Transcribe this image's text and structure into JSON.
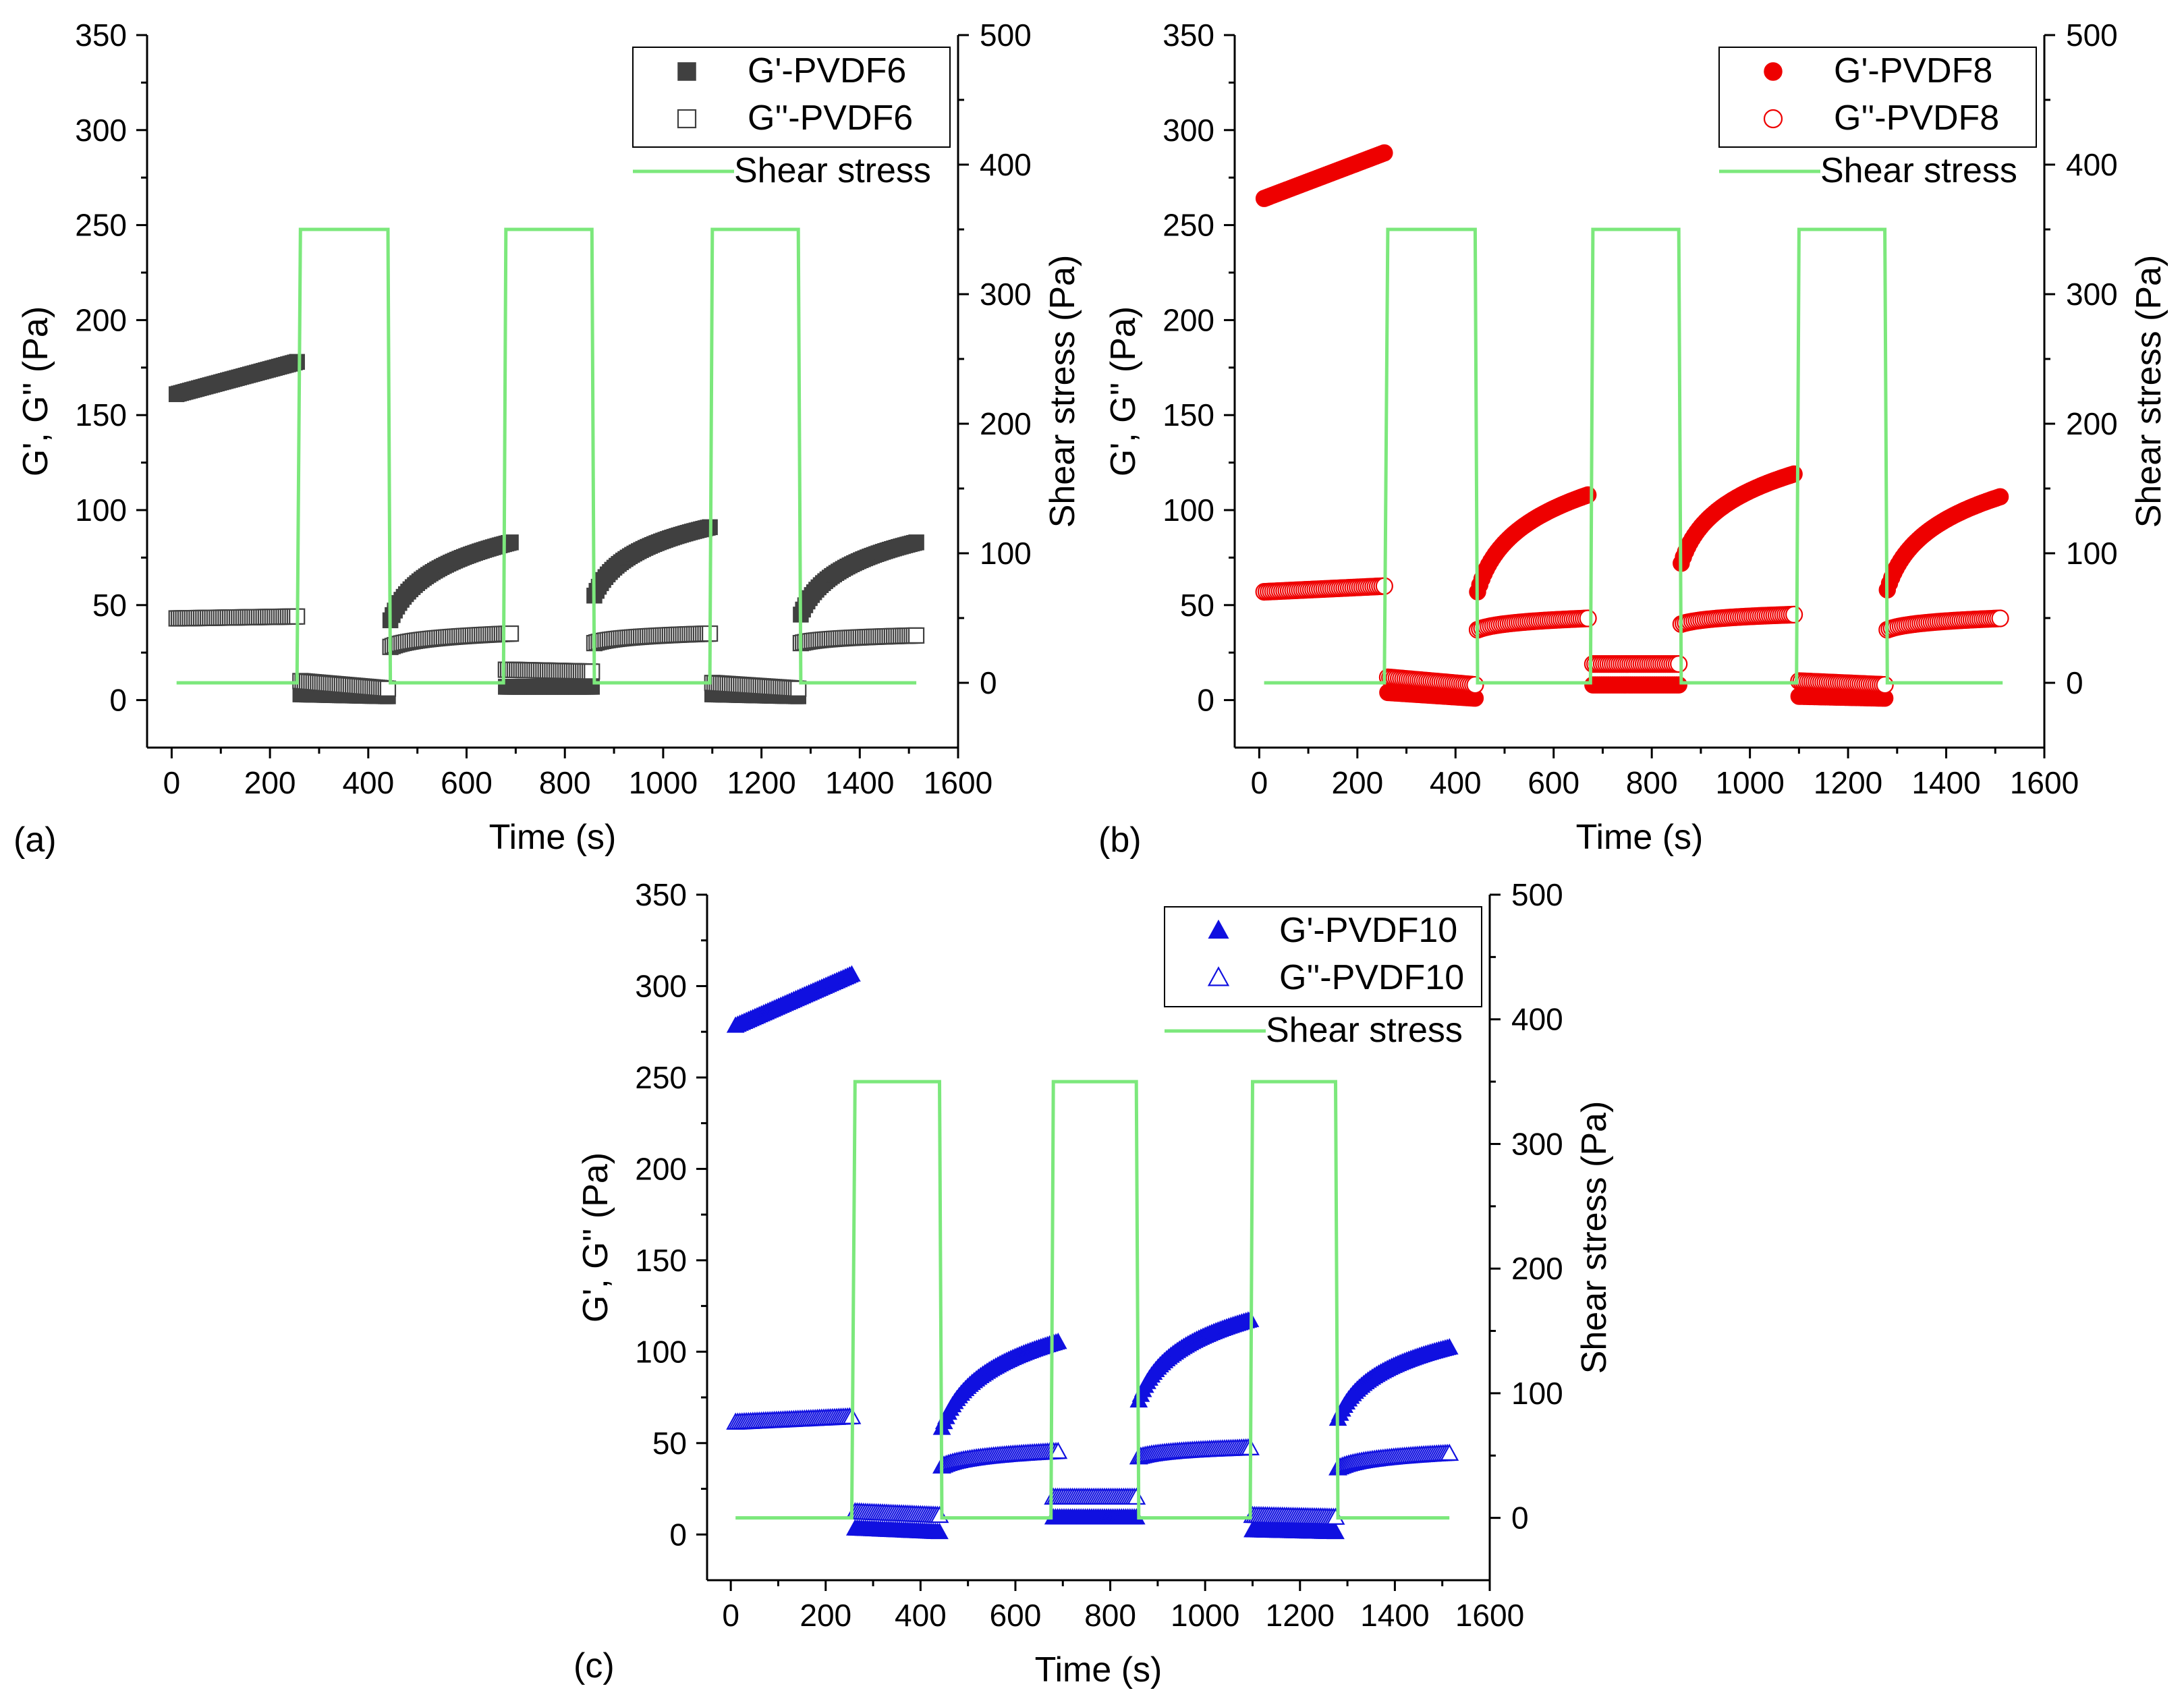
{
  "chart_data": [
    {
      "type": "scatter",
      "panel_label": "(a)",
      "xlabel": "Time (s)",
      "ylabel": "G', G'' (Pa)",
      "y2label": "Shear stress (Pa)",
      "xlim": [
        -50,
        1600
      ],
      "ylim": [
        -25,
        350
      ],
      "y2lim": [
        -50,
        500
      ],
      "xticks": [
        "0",
        "200",
        "400",
        "600",
        "800",
        "1000",
        "1200",
        "1400",
        "1600"
      ],
      "yticks": [
        "0",
        "50",
        "100",
        "150",
        "200",
        "250",
        "300",
        "350"
      ],
      "y2ticks": [
        "0",
        "100",
        "200",
        "300",
        "400",
        "500"
      ],
      "marker": "square",
      "color": "#404040",
      "stress_color": "#7CE87C",
      "legend_position": "top-right",
      "legend": [
        "G'-PVDF6",
        "G''-PVDF6",
        "Shear stress"
      ],
      "series": [
        {
          "name": "G'-PVDF6",
          "filled": true,
          "segments": [
            {
              "t0": 10,
              "t1": 255,
              "v0": 161,
              "v1": 178,
              "shape": "linear"
            },
            {
              "t0": 262,
              "t1": 440,
              "v0": 3,
              "v1": 2,
              "shape": "linear"
            },
            {
              "t0": 445,
              "t1": 690,
              "v0": 42,
              "v1": 83,
              "shape": "log"
            },
            {
              "t0": 680,
              "t1": 855,
              "v0": 7,
              "v1": 7,
              "shape": "linear"
            },
            {
              "t0": 860,
              "t1": 1095,
              "v0": 55,
              "v1": 91,
              "shape": "log"
            },
            {
              "t0": 1100,
              "t1": 1275,
              "v0": 3,
              "v1": 2,
              "shape": "linear"
            },
            {
              "t0": 1280,
              "t1": 1515,
              "v0": 45,
              "v1": 83,
              "shape": "log"
            }
          ]
        },
        {
          "name": "G''-PVDF6",
          "filled": false,
          "segments": [
            {
              "t0": 10,
              "t1": 255,
              "v0": 43,
              "v1": 44,
              "shape": "linear"
            },
            {
              "t0": 262,
              "t1": 440,
              "v0": 10,
              "v1": 6,
              "shape": "linear"
            },
            {
              "t0": 445,
              "t1": 690,
              "v0": 28,
              "v1": 35,
              "shape": "log"
            },
            {
              "t0": 680,
              "t1": 855,
              "v0": 16,
              "v1": 15,
              "shape": "linear"
            },
            {
              "t0": 860,
              "t1": 1095,
              "v0": 30,
              "v1": 35,
              "shape": "log"
            },
            {
              "t0": 1100,
              "t1": 1275,
              "v0": 9,
              "v1": 6,
              "shape": "linear"
            },
            {
              "t0": 1280,
              "t1": 1515,
              "v0": 30,
              "v1": 34,
              "shape": "log"
            }
          ]
        },
        {
          "name": "Shear stress",
          "type": "line",
          "points": [
            [
              10,
              0
            ],
            [
              255,
              0
            ],
            [
              262,
              350
            ],
            [
              440,
              350
            ],
            [
              445,
              0
            ],
            [
              675,
              0
            ],
            [
              680,
              350
            ],
            [
              855,
              350
            ],
            [
              860,
              0
            ],
            [
              1095,
              0
            ],
            [
              1100,
              350
            ],
            [
              1275,
              350
            ],
            [
              1280,
              0
            ],
            [
              1515,
              0
            ]
          ]
        }
      ]
    },
    {
      "type": "scatter",
      "panel_label": "(b)",
      "xlabel": "Time (s)",
      "ylabel": "G', G'' (Pa)",
      "y2label": "Shear stress (Pa)",
      "xlim": [
        -50,
        1600
      ],
      "ylim": [
        -25,
        350
      ],
      "y2lim": [
        -50,
        500
      ],
      "xticks": [
        "0",
        "200",
        "400",
        "600",
        "800",
        "1000",
        "1200",
        "1400",
        "1600"
      ],
      "yticks": [
        "0",
        "50",
        "100",
        "150",
        "200",
        "250",
        "300",
        "350"
      ],
      "y2ticks": [
        "0",
        "100",
        "200",
        "300",
        "400",
        "500"
      ],
      "marker": "circle",
      "color": "#EE0000",
      "stress_color": "#7CE87C",
      "legend_position": "top-right",
      "legend": [
        "G'-PVDF8",
        "G''-PVDF8",
        "Shear stress"
      ],
      "series": [
        {
          "name": "G'-PVDF8",
          "filled": true,
          "segments": [
            {
              "t0": 10,
              "t1": 255,
              "v0": 264,
              "v1": 288,
              "shape": "linear"
            },
            {
              "t0": 262,
              "t1": 440,
              "v0": 4,
              "v1": 1,
              "shape": "linear"
            },
            {
              "t0": 445,
              "t1": 670,
              "v0": 57,
              "v1": 108,
              "shape": "log"
            },
            {
              "t0": 680,
              "t1": 855,
              "v0": 8,
              "v1": 8,
              "shape": "linear"
            },
            {
              "t0": 860,
              "t1": 1090,
              "v0": 72,
              "v1": 119,
              "shape": "log"
            },
            {
              "t0": 1100,
              "t1": 1275,
              "v0": 2,
              "v1": 1,
              "shape": "linear"
            },
            {
              "t0": 1280,
              "t1": 1510,
              "v0": 58,
              "v1": 107,
              "shape": "log"
            }
          ]
        },
        {
          "name": "G''-PVDF8",
          "filled": false,
          "segments": [
            {
              "t0": 10,
              "t1": 255,
              "v0": 57,
              "v1": 60,
              "shape": "linear"
            },
            {
              "t0": 262,
              "t1": 440,
              "v0": 12,
              "v1": 8,
              "shape": "linear"
            },
            {
              "t0": 445,
              "t1": 670,
              "v0": 37,
              "v1": 43,
              "shape": "log"
            },
            {
              "t0": 680,
              "t1": 855,
              "v0": 19,
              "v1": 19,
              "shape": "linear"
            },
            {
              "t0": 860,
              "t1": 1090,
              "v0": 40,
              "v1": 45,
              "shape": "log"
            },
            {
              "t0": 1100,
              "t1": 1275,
              "v0": 10,
              "v1": 8,
              "shape": "linear"
            },
            {
              "t0": 1280,
              "t1": 1510,
              "v0": 37,
              "v1": 43,
              "shape": "log"
            }
          ]
        },
        {
          "name": "Shear stress",
          "type": "line",
          "points": [
            [
              10,
              0
            ],
            [
              255,
              0
            ],
            [
              262,
              350
            ],
            [
              440,
              350
            ],
            [
              445,
              0
            ],
            [
              675,
              0
            ],
            [
              680,
              350
            ],
            [
              855,
              350
            ],
            [
              860,
              0
            ],
            [
              1095,
              0
            ],
            [
              1100,
              350
            ],
            [
              1275,
              350
            ],
            [
              1280,
              0
            ],
            [
              1515,
              0
            ]
          ]
        }
      ]
    },
    {
      "type": "scatter",
      "panel_label": "(c)",
      "xlabel": "Time (s)",
      "ylabel": "G', G'' (Pa)",
      "y2label": "Shear stress (Pa)",
      "xlim": [
        -50,
        1600
      ],
      "ylim": [
        -25,
        350
      ],
      "y2lim": [
        -50,
        500
      ],
      "xticks": [
        "0",
        "200",
        "400",
        "600",
        "800",
        "1000",
        "1200",
        "1400",
        "1600"
      ],
      "yticks": [
        "0",
        "50",
        "100",
        "150",
        "200",
        "250",
        "300",
        "350"
      ],
      "y2ticks": [
        "0",
        "100",
        "200",
        "300",
        "400",
        "500"
      ],
      "marker": "triangle",
      "color": "#1010E0",
      "stress_color": "#7CE87C",
      "legend_position": "top-right",
      "legend": [
        "G'-PVDF10",
        "G''-PVDF10",
        "Shear stress"
      ],
      "series": [
        {
          "name": "G'-PVDF10",
          "filled": true,
          "segments": [
            {
              "t0": 10,
              "t1": 255,
              "v0": 278,
              "v1": 306,
              "shape": "linear"
            },
            {
              "t0": 262,
              "t1": 440,
              "v0": 3,
              "v1": 1,
              "shape": "linear"
            },
            {
              "t0": 445,
              "t1": 690,
              "v0": 58,
              "v1": 105,
              "shape": "log"
            },
            {
              "t0": 680,
              "t1": 855,
              "v0": 9,
              "v1": 9,
              "shape": "linear"
            },
            {
              "t0": 860,
              "t1": 1095,
              "v0": 73,
              "v1": 117,
              "shape": "log"
            },
            {
              "t0": 1100,
              "t1": 1275,
              "v0": 2,
              "v1": 1,
              "shape": "linear"
            },
            {
              "t0": 1280,
              "t1": 1515,
              "v0": 63,
              "v1": 102,
              "shape": "log"
            }
          ]
        },
        {
          "name": "G''-PVDF10",
          "filled": false,
          "segments": [
            {
              "t0": 10,
              "t1": 255,
              "v0": 61,
              "v1": 64,
              "shape": "linear"
            },
            {
              "t0": 262,
              "t1": 440,
              "v0": 12,
              "v1": 10,
              "shape": "linear"
            },
            {
              "t0": 445,
              "t1": 690,
              "v0": 37,
              "v1": 45,
              "shape": "log"
            },
            {
              "t0": 680,
              "t1": 855,
              "v0": 20,
              "v1": 20,
              "shape": "linear"
            },
            {
              "t0": 860,
              "t1": 1095,
              "v0": 42,
              "v1": 47,
              "shape": "log"
            },
            {
              "t0": 1100,
              "t1": 1275,
              "v0": 10,
              "v1": 9,
              "shape": "linear"
            },
            {
              "t0": 1280,
              "t1": 1515,
              "v0": 36,
              "v1": 44,
              "shape": "log"
            }
          ]
        },
        {
          "name": "Shear stress",
          "type": "line",
          "points": [
            [
              10,
              0
            ],
            [
              255,
              0
            ],
            [
              262,
              350
            ],
            [
              440,
              350
            ],
            [
              445,
              0
            ],
            [
              675,
              0
            ],
            [
              680,
              350
            ],
            [
              855,
              350
            ],
            [
              860,
              0
            ],
            [
              1095,
              0
            ],
            [
              1100,
              350
            ],
            [
              1275,
              350
            ],
            [
              1280,
              0
            ],
            [
              1515,
              0
            ]
          ]
        }
      ]
    }
  ]
}
